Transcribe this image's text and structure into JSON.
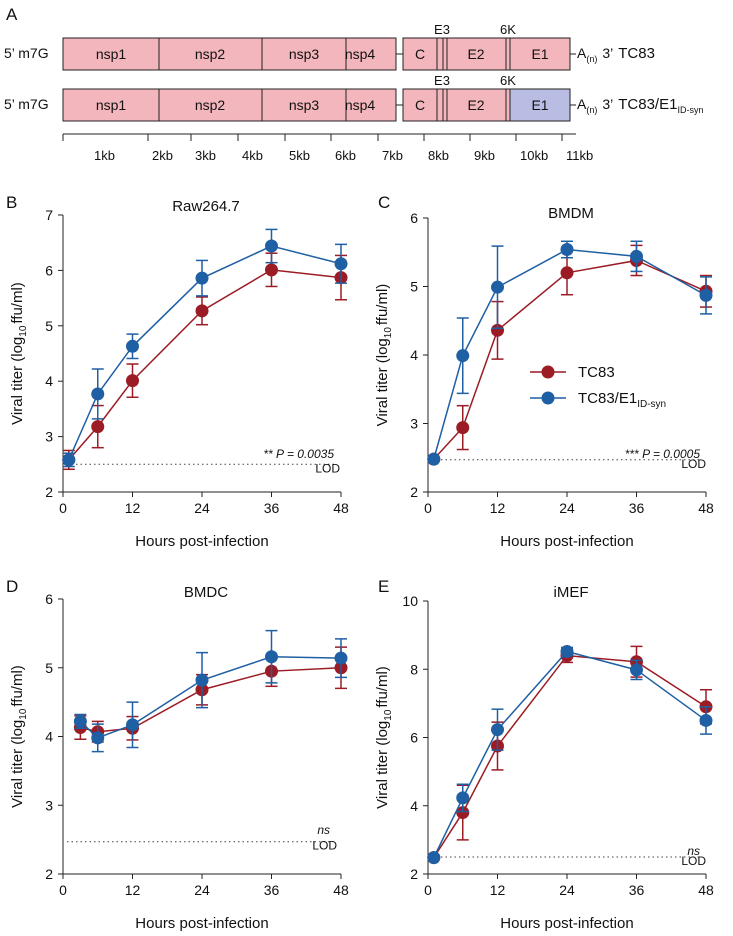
{
  "panel_a": {
    "letter": "A",
    "scale_labels": [
      "1kb",
      "2kb",
      "3kb",
      "4kb",
      "5kb",
      "6kb",
      "7kb",
      "8kb",
      "9kb",
      "10kb",
      "11kb"
    ],
    "constructs": [
      {
        "prefix": "5’ m7G",
        "segments": [
          {
            "label": "nsp1",
            "color": "#f4b6bd"
          },
          {
            "label": "nsp2",
            "color": "#f4b6bd"
          },
          {
            "label": "nsp3",
            "color": "#f4b6bd"
          },
          {
            "label": "nsp4",
            "color": "#f4b6bd"
          },
          {
            "label": "C",
            "color": "#f4b6bd"
          },
          {
            "label": "",
            "color": "#f4b6bd"
          },
          {
            "label": "",
            "color": "#f4b6bd"
          },
          {
            "label": "E2",
            "color": "#f4b6bd"
          },
          {
            "label": "",
            "color": "#f4b6bd"
          },
          {
            "label": "E1",
            "color": "#f4b6bd"
          }
        ],
        "e3_label": "E3",
        "k6_label": "6K",
        "polyA": "A",
        "polyA_sub": "(n)",
        "suffix": "3’",
        "name": "TC83",
        "name_sub": ""
      },
      {
        "prefix": "5’ m7G",
        "segments": [
          {
            "label": "nsp1",
            "color": "#f4b6bd"
          },
          {
            "label": "nsp2",
            "color": "#f4b6bd"
          },
          {
            "label": "nsp3",
            "color": "#f4b6bd"
          },
          {
            "label": "nsp4",
            "color": "#f4b6bd"
          },
          {
            "label": "C",
            "color": "#f4b6bd"
          },
          {
            "label": "",
            "color": "#f4b6bd"
          },
          {
            "label": "",
            "color": "#f4b6bd"
          },
          {
            "label": "E2",
            "color": "#f4b6bd"
          },
          {
            "label": "",
            "color": "#f4b6bd"
          },
          {
            "label": "E1",
            "color": "#b9bde3"
          }
        ],
        "e3_label": "E3",
        "k6_label": "6K",
        "polyA": "A",
        "polyA_sub": "(n)",
        "suffix": "3’",
        "name": "TC83/E1",
        "name_sub": "ID-syn"
      }
    ]
  },
  "legend": {
    "items": [
      {
        "label": "TC83",
        "sub": "",
        "color": "#9b1c24"
      },
      {
        "label": "TC83/E1",
        "sub": "ID-syn",
        "color": "#1f5fa3"
      }
    ]
  },
  "common": {
    "xlabel": "Hours post-infection",
    "ylabel_pre": "Viral titer (log",
    "ylabel_sub": "10",
    "ylabel_post": "ffu/ml)",
    "lod_label": "LOD"
  },
  "chart_data": [
    {
      "type": "line",
      "letter": "B",
      "title": "Raw264.7",
      "xlabel": "Hours post-infection",
      "ylabel": "Viral titer (log10 ffu/ml)",
      "x": [
        1,
        6,
        12,
        24,
        36,
        48
      ],
      "xticks": [
        0,
        12,
        24,
        36,
        48
      ],
      "xlim": [
        0,
        48
      ],
      "ylim": [
        2,
        7
      ],
      "yticks": [
        2,
        3,
        4,
        5,
        6,
        7
      ],
      "lod": 2.5,
      "annotation": "** P = 0.0035",
      "series": [
        {
          "name": "TC83",
          "color": "#9b1c24",
          "values": [
            2.58,
            3.18,
            4.01,
            5.27,
            6.01,
            5.87
          ],
          "errors": [
            0.17,
            0.38,
            0.3,
            0.25,
            0.3,
            0.4
          ]
        },
        {
          "name": "TC83/E1 ID-syn",
          "color": "#1f5fa3",
          "values": [
            2.58,
            3.77,
            4.63,
            5.86,
            6.44,
            6.12
          ],
          "errors": [
            0.12,
            0.45,
            0.22,
            0.32,
            0.3,
            0.35
          ]
        }
      ]
    },
    {
      "type": "line",
      "letter": "C",
      "title": "BMDM",
      "xlabel": "Hours post-infection",
      "ylabel": "Viral titer (log10 ffu/ml)",
      "x": [
        1,
        6,
        12,
        24,
        36,
        48
      ],
      "xticks": [
        0,
        12,
        24,
        36,
        48
      ],
      "xlim": [
        0,
        48
      ],
      "ylim": [
        2,
        6
      ],
      "yticks": [
        2,
        3,
        4,
        5,
        6
      ],
      "lod": 2.47,
      "annotation": "*** P = 0.0005",
      "series": [
        {
          "name": "TC83",
          "color": "#9b1c24",
          "values": [
            2.48,
            2.94,
            4.36,
            5.2,
            5.38,
            4.93
          ],
          "errors": [
            0.02,
            0.32,
            0.42,
            0.32,
            0.22,
            0.23
          ]
        },
        {
          "name": "TC83/E1 ID-syn",
          "color": "#1f5fa3",
          "values": [
            2.48,
            3.99,
            4.99,
            5.54,
            5.44,
            4.87
          ],
          "errors": [
            0.02,
            0.55,
            0.6,
            0.12,
            0.22,
            0.27
          ]
        }
      ]
    },
    {
      "type": "line",
      "letter": "D",
      "title": "BMDC",
      "xlabel": "Hours post-infection",
      "ylabel": "Viral titer (log10 ffu/ml)",
      "x": [
        3,
        6,
        12,
        24,
        36,
        48
      ],
      "xticks": [
        0,
        12,
        24,
        36,
        48
      ],
      "xlim": [
        0,
        48
      ],
      "ylim": [
        2,
        6
      ],
      "yticks": [
        2,
        3,
        4,
        5,
        6
      ],
      "lod": 2.47,
      "annotation": "ns",
      "series": [
        {
          "name": "TC83",
          "color": "#9b1c24",
          "values": [
            4.13,
            4.07,
            4.12,
            4.68,
            4.95,
            5.0
          ],
          "errors": [
            0.17,
            0.15,
            0.17,
            0.22,
            0.22,
            0.3
          ]
        },
        {
          "name": "TC83/E1 ID-syn",
          "color": "#1f5fa3",
          "values": [
            4.22,
            3.98,
            4.17,
            4.82,
            5.16,
            5.14
          ],
          "errors": [
            0.1,
            0.2,
            0.33,
            0.4,
            0.38,
            0.28
          ]
        }
      ]
    },
    {
      "type": "line",
      "letter": "E",
      "title": "iMEF",
      "xlabel": "Hours post-infection",
      "ylabel": "Viral titer (log10 ffu/ml)",
      "x": [
        1,
        6,
        12,
        24,
        36,
        48
      ],
      "xticks": [
        0,
        12,
        24,
        36,
        48
      ],
      "xlim": [
        0,
        48
      ],
      "ylim": [
        2,
        10
      ],
      "yticks": [
        2,
        4,
        6,
        8,
        10
      ],
      "lod": 2.5,
      "annotation": "ns",
      "series": [
        {
          "name": "TC83",
          "color": "#9b1c24",
          "values": [
            2.48,
            3.8,
            5.75,
            8.4,
            8.22,
            6.9
          ],
          "errors": [
            0.05,
            0.8,
            0.7,
            0.2,
            0.45,
            0.5
          ]
        },
        {
          "name": "TC83/E1 ID-syn",
          "color": "#1f5fa3",
          "values": [
            2.48,
            4.23,
            6.23,
            8.52,
            7.98,
            6.5
          ],
          "errors": [
            0.05,
            0.4,
            0.6,
            0.12,
            0.28,
            0.4
          ]
        }
      ]
    }
  ]
}
